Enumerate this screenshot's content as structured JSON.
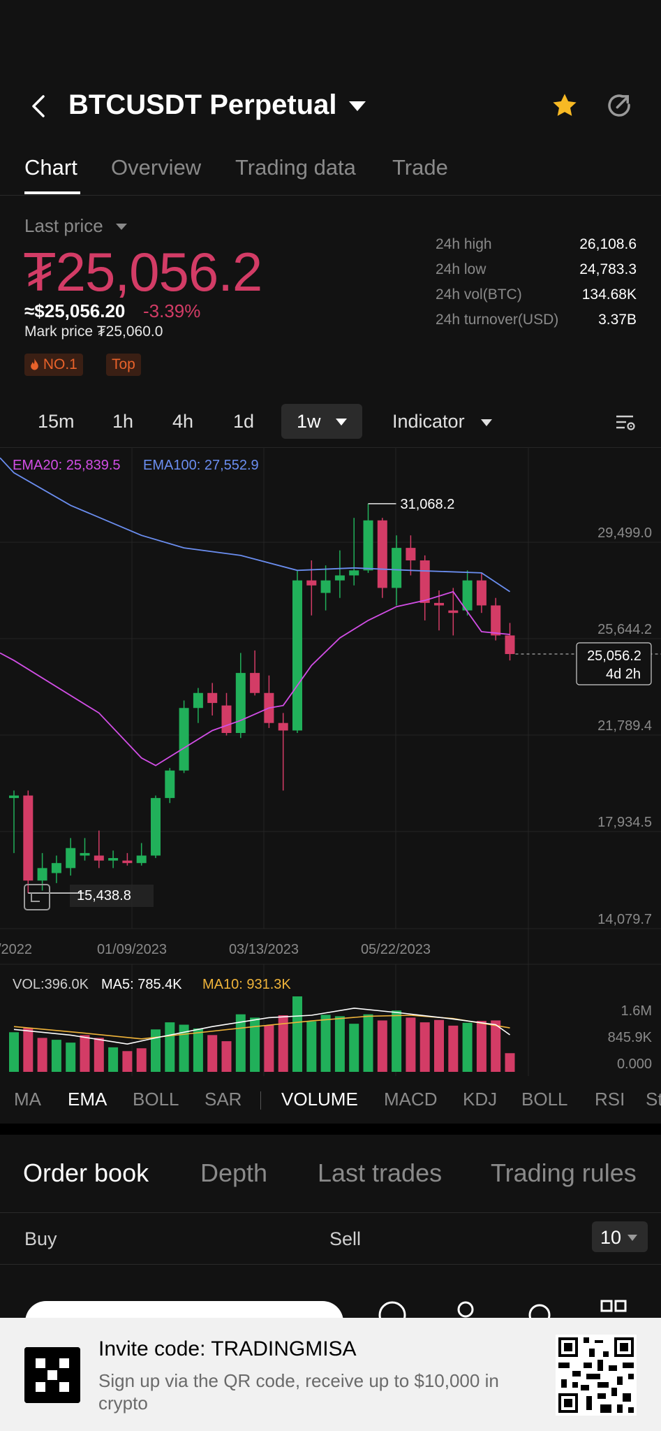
{
  "header": {
    "title": "BTCUSDT Perpetual"
  },
  "tabs": [
    {
      "label": "Chart"
    },
    {
      "label": "Overview"
    },
    {
      "label": "Trading data"
    },
    {
      "label": "Trade"
    }
  ],
  "price": {
    "last_price_label": "Last price",
    "last_price": "₮25,056.2",
    "usd_price": "≈$25,056.20",
    "change_pct": "-3.39%",
    "mark_price": "Mark price ₮25,060.0",
    "badges": [
      "NO.1",
      "Top"
    ]
  },
  "stats": [
    {
      "label": "24h high",
      "value": "26,108.6"
    },
    {
      "label": "24h low",
      "value": "24,783.3"
    },
    {
      "label": "24h vol(BTC)",
      "value": "134.68K"
    },
    {
      "label": "24h turnover(USD)",
      "value": "3.37B"
    }
  ],
  "intervals": {
    "items": [
      "15m",
      "1h",
      "4h",
      "1d"
    ],
    "selected": "1w",
    "indicator_label": "Indicator"
  },
  "chart": {
    "ema20_label": "EMA20: 25,839.5",
    "ema100_label": "EMA100: 27,552.9",
    "high_label": "31,068.2",
    "low_label": "15,438.8",
    "current_price_label": "25,056.2",
    "countdown_label": "4d 2h",
    "y_ticks": [
      "29,499.0",
      "25,644.2",
      "21,789.4",
      "17,934.5",
      "14,079.7"
    ],
    "x_ticks": [
      "/2022",
      "01/09/2023",
      "03/13/2023",
      "05/22/2023"
    ],
    "vol_label": "VOL:396.0K",
    "ma5_label": "MA5: 785.4K",
    "ma10_label": "MA10: 931.3K",
    "vol_ticks": [
      "1.6M",
      "845.9K",
      "0.000"
    ]
  },
  "chart_data": {
    "type": "candlestick",
    "interval": "1w",
    "ylim": [
      14079.7,
      33354.0
    ],
    "colors": {
      "up": "#21b05a",
      "down": "#d33c66",
      "ema20": "#d24ee6",
      "ema100": "#6b8ef0",
      "ma5": "#ffffff",
      "ma10": "#f0b43a"
    },
    "candles": [
      {
        "o": 19300,
        "h": 19600,
        "l": 17100,
        "c": 19400
      },
      {
        "o": 19400,
        "h": 19600,
        "l": 15500,
        "c": 16000
      },
      {
        "o": 16000,
        "h": 17100,
        "l": 15600,
        "c": 16500
      },
      {
        "o": 16300,
        "h": 17000,
        "l": 15900,
        "c": 16700
      },
      {
        "o": 16500,
        "h": 17700,
        "l": 16200,
        "c": 17300
      },
      {
        "o": 17000,
        "h": 17700,
        "l": 16800,
        "c": 17100
      },
      {
        "o": 17000,
        "h": 18000,
        "l": 16500,
        "c": 16800
      },
      {
        "o": 16800,
        "h": 17200,
        "l": 16500,
        "c": 16900
      },
      {
        "o": 16800,
        "h": 17100,
        "l": 16600,
        "c": 16700
      },
      {
        "o": 16700,
        "h": 17500,
        "l": 16600,
        "c": 17000
      },
      {
        "o": 17000,
        "h": 19400,
        "l": 16900,
        "c": 19300
      },
      {
        "o": 19300,
        "h": 20500,
        "l": 19100,
        "c": 20400
      },
      {
        "o": 20400,
        "h": 23200,
        "l": 20300,
        "c": 22900
      },
      {
        "o": 22900,
        "h": 23700,
        "l": 22300,
        "c": 23500
      },
      {
        "o": 23500,
        "h": 23900,
        "l": 22600,
        "c": 23100
      },
      {
        "o": 23000,
        "h": 23500,
        "l": 21800,
        "c": 21900
      },
      {
        "o": 21900,
        "h": 25100,
        "l": 21700,
        "c": 24300
      },
      {
        "o": 24300,
        "h": 25200,
        "l": 23400,
        "c": 23500
      },
      {
        "o": 23500,
        "h": 24200,
        "l": 22100,
        "c": 22300
      },
      {
        "o": 22300,
        "h": 22700,
        "l": 19600,
        "c": 22000
      },
      {
        "o": 22000,
        "h": 28400,
        "l": 21900,
        "c": 28000
      },
      {
        "o": 28000,
        "h": 28800,
        "l": 26600,
        "c": 27800
      },
      {
        "o": 27500,
        "h": 28600,
        "l": 26800,
        "c": 28000
      },
      {
        "o": 28000,
        "h": 29200,
        "l": 27300,
        "c": 28200
      },
      {
        "o": 28200,
        "h": 30500,
        "l": 27800,
        "c": 28400
      },
      {
        "o": 28400,
        "h": 31068.2,
        "l": 28300,
        "c": 30400
      },
      {
        "o": 30400,
        "h": 30500,
        "l": 27300,
        "c": 27700
      },
      {
        "o": 27700,
        "h": 29800,
        "l": 27000,
        "c": 29300
      },
      {
        "o": 29300,
        "h": 29800,
        "l": 28200,
        "c": 28800
      },
      {
        "o": 28800,
        "h": 29000,
        "l": 26400,
        "c": 27100
      },
      {
        "o": 27100,
        "h": 27600,
        "l": 26000,
        "c": 27000
      },
      {
        "o": 26800,
        "h": 27700,
        "l": 25800,
        "c": 26700
      },
      {
        "o": 26800,
        "h": 28400,
        "l": 26600,
        "c": 28000
      },
      {
        "o": 28000,
        "h": 28300,
        "l": 26700,
        "c": 27000
      },
      {
        "o": 27000,
        "h": 27300,
        "l": 25600,
        "c": 25800
      },
      {
        "o": 25800,
        "h": 26300,
        "l": 24800,
        "c": 25056.2
      }
    ],
    "ema20": [
      [
        0,
        24800
      ],
      [
        6,
        22700
      ],
      [
        9,
        20900
      ],
      [
        10,
        20600
      ],
      [
        12,
        21300
      ],
      [
        14,
        22000
      ],
      [
        16,
        22400
      ],
      [
        18,
        22900
      ],
      [
        19,
        23000
      ],
      [
        21,
        24600
      ],
      [
        23,
        25700
      ],
      [
        25,
        26400
      ],
      [
        27,
        26950
      ],
      [
        29,
        27200
      ],
      [
        31,
        27550
      ],
      [
        33,
        25950
      ],
      [
        35,
        25839.5
      ]
    ],
    "ema100": [
      [
        0,
        32300
      ],
      [
        4,
        31000
      ],
      [
        9,
        29800
      ],
      [
        12,
        29300
      ],
      [
        16,
        29000
      ],
      [
        20,
        28400
      ],
      [
        24,
        28500
      ],
      [
        28,
        28400
      ],
      [
        33,
        28300
      ],
      [
        35,
        27552.9
      ]
    ],
    "volume": {
      "ylim": [
        0,
        1600000
      ],
      "up": [
        true,
        false,
        false,
        true,
        true,
        false,
        false,
        true,
        false,
        false,
        true,
        true,
        true,
        true,
        false,
        false,
        true,
        true,
        false,
        false,
        true,
        true,
        true,
        true,
        true,
        true,
        false,
        true,
        false,
        false,
        false,
        false,
        true,
        false,
        false,
        false
      ],
      "values": [
        840000,
        930000,
        720000,
        680000,
        620000,
        780000,
        720000,
        520000,
        440000,
        500000,
        900000,
        1050000,
        1000000,
        920000,
        780000,
        650000,
        1220000,
        1150000,
        990000,
        1200000,
        1600000,
        1070000,
        1210000,
        1180000,
        1020000,
        1220000,
        1090000,
        1300000,
        1150000,
        1050000,
        1100000,
        980000,
        1040000,
        1080000,
        1090000,
        396000
      ],
      "ma5": [
        [
          0,
          900000
        ],
        [
          4,
          780000
        ],
        [
          8,
          590000
        ],
        [
          10,
          720000
        ],
        [
          14,
          960000
        ],
        [
          18,
          1150000
        ],
        [
          21,
          1200000
        ],
        [
          24,
          1350000
        ],
        [
          27,
          1260000
        ],
        [
          31,
          1120000
        ],
        [
          34,
          1000000
        ],
        [
          35,
          785400
        ]
      ],
      "ma10": [
        [
          0,
          960000
        ],
        [
          5,
          820000
        ],
        [
          9,
          700000
        ],
        [
          13,
          830000
        ],
        [
          17,
          960000
        ],
        [
          21,
          1080000
        ],
        [
          25,
          1180000
        ],
        [
          28,
          1200000
        ],
        [
          31,
          1130000
        ],
        [
          35,
          931300
        ]
      ]
    }
  },
  "indicator_tabs": {
    "main": [
      "MA",
      "EMA",
      "BOLL",
      "SAR"
    ],
    "sub": [
      "VOLUME",
      "MACD",
      "KDJ",
      "BOLL",
      "RSI",
      "St"
    ]
  },
  "order_book": {
    "tabs": [
      "Order book",
      "Depth",
      "Last trades",
      "Trading rules"
    ],
    "buy_label": "Buy",
    "sell_label": "Sell",
    "depth_value": "10"
  },
  "banner": {
    "title": "Invite code: TRADINGMISA",
    "subtitle": "Sign up via the QR code, receive up to $10,000 in crypto"
  }
}
